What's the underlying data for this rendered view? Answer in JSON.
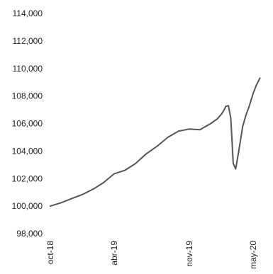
{
  "chart_data": {
    "type": "line",
    "title": "",
    "xlabel": "",
    "ylabel": "",
    "x_range": [
      "2018-10-01",
      "2020-05-31"
    ],
    "ylim": [
      98000,
      114000
    ],
    "yticks": [
      98000,
      100000,
      102000,
      104000,
      106000,
      108000,
      110000,
      112000,
      114000
    ],
    "ytick_labels": [
      "98,000",
      "100,000",
      "102,000",
      "104,000",
      "106,000",
      "108,000",
      "110,000",
      "112,000",
      "114,000"
    ],
    "xticks": [
      "2018-10-01",
      "2019-04-01",
      "2019-11-01",
      "2020-05-01"
    ],
    "xtick_labels": [
      "oct-18",
      "abr-19",
      "nov-19",
      "may-20"
    ],
    "grid": false,
    "legend": "none",
    "colors": {
      "line": "#555555",
      "text": "#222222"
    },
    "series": [
      {
        "x": [
          "2018-10-01",
          "2018-11-01",
          "2018-12-01",
          "2019-01-01",
          "2019-02-01",
          "2019-03-01",
          "2019-04-01",
          "2019-05-01",
          "2019-06-01",
          "2019-07-01",
          "2019-08-01",
          "2019-09-01",
          "2019-10-01",
          "2019-11-01",
          "2019-12-01",
          "2020-01-01",
          "2020-01-20",
          "2020-02-01",
          "2020-02-08",
          "2020-02-13",
          "2020-02-20",
          "2020-02-27",
          "2020-03-05",
          "2020-03-12",
          "2020-03-20",
          "2020-04-01",
          "2020-04-10",
          "2020-04-20",
          "2020-05-01",
          "2020-05-10",
          "2020-05-20"
        ],
        "values": [
          100000,
          100250,
          100550,
          100850,
          101250,
          101700,
          102350,
          102600,
          103100,
          103800,
          104350,
          105000,
          105450,
          105600,
          105550,
          106000,
          106350,
          106700,
          107000,
          107250,
          107300,
          106400,
          103100,
          102700,
          103900,
          105800,
          106600,
          107300,
          108200,
          108800,
          109300
        ]
      }
    ]
  }
}
